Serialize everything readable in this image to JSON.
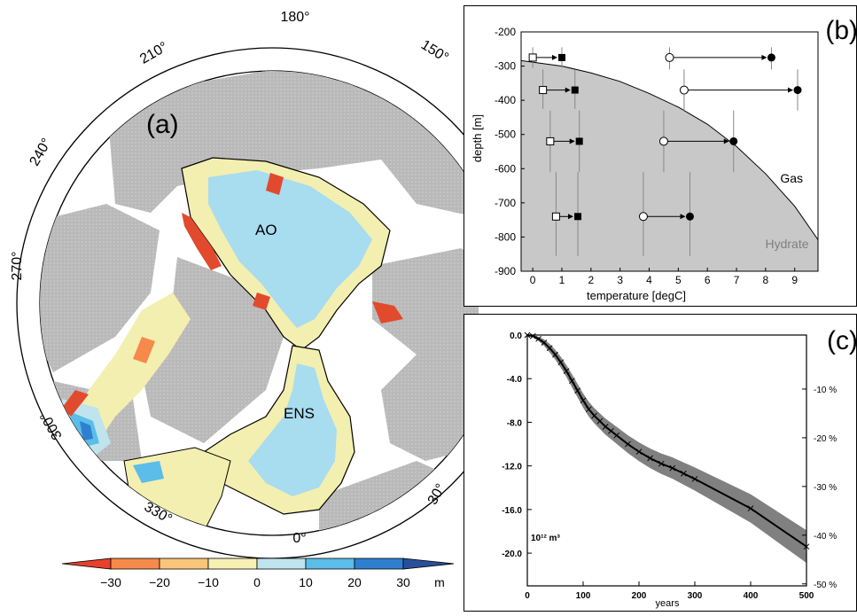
{
  "panel_a": {
    "label": "(a)",
    "longitudes": [
      "180°",
      "150°",
      "210°",
      "240°",
      "270°",
      "300°",
      "330°",
      "0°",
      "30°"
    ],
    "regions": [
      "AO",
      "ENS"
    ],
    "colorbar": {
      "ticks": [
        "−30",
        "−20",
        "−10",
        "0",
        "10",
        "20",
        "30"
      ],
      "unit": "m",
      "colors": [
        "#e8402c",
        "#f58a4a",
        "#f9c57a",
        "#f7f0b4",
        "#bfe4ee",
        "#5bbde8",
        "#2f7fd0",
        "#2a4f9a"
      ]
    },
    "colors": {
      "land": "#b7b7b7",
      "shelf_yellow": "#f3efb0",
      "deep_blue": "#a8dcef",
      "loss_red": "#e24a2e"
    }
  },
  "chart_data": [
    {
      "type": "scatter",
      "label": "(b)",
      "xlabel": "temperature [degC]",
      "ylabel": "depth [m]",
      "xlim": [
        -0.4,
        9.8
      ],
      "ylim": [
        -900,
        -200
      ],
      "xticks": [
        "0",
        "1",
        "2",
        "3",
        "4",
        "5",
        "6",
        "7",
        "8",
        "9"
      ],
      "yticks": [
        "-200",
        "-300",
        "-400",
        "-500",
        "-600",
        "-700",
        "-800",
        "-900"
      ],
      "regions": {
        "gas": "Gas",
        "hydrate": "Hydrate"
      },
      "stability_curve": {
        "x": [
          -0.4,
          1,
          2,
          3,
          4,
          5,
          6,
          7,
          8,
          9,
          9.8
        ],
        "y": [
          -284,
          -300,
          -320,
          -345,
          -380,
          -420,
          -470,
          -535,
          -615,
          -710,
          -808
        ]
      },
      "arrows_squares": [
        {
          "depth": -275,
          "from": 0,
          "to": 1.0,
          "err_to": [
            -245,
            -305
          ]
        },
        {
          "depth": -370,
          "from": 0.35,
          "to": 1.45,
          "err_to": [
            -310,
            -425
          ]
        },
        {
          "depth": -520,
          "from": 0.6,
          "to": 1.6,
          "err_to": [
            -430,
            -610
          ]
        },
        {
          "depth": -740,
          "from": 0.8,
          "to": 1.55,
          "err_to": [
            -610,
            -855
          ]
        }
      ],
      "arrows_circles": [
        {
          "depth": -275,
          "from": 4.7,
          "to": 8.2,
          "err_to": [
            -245,
            -310
          ]
        },
        {
          "depth": -370,
          "from": 5.2,
          "to": 9.1,
          "err_to": [
            -310,
            -430
          ]
        },
        {
          "depth": -520,
          "from": 4.5,
          "to": 6.9,
          "err_to": [
            -430,
            -610
          ]
        },
        {
          "depth": -740,
          "from": 3.8,
          "to": 5.4,
          "err_to": [
            -610,
            -855
          ]
        }
      ]
    },
    {
      "type": "line",
      "label": "(c)",
      "xlabel": "years",
      "xlim": [
        0,
        500
      ],
      "ylim": [
        -23,
        0
      ],
      "unit_label": "10¹² m³",
      "xticks": [
        "0",
        "100",
        "200",
        "300",
        "400",
        "500"
      ],
      "yticks": [
        "0.0",
        "-4.0",
        "-8.0",
        "-12.0",
        "-16.0",
        "-20.0"
      ],
      "yticks_right": [
        "-10 %",
        "-20 %",
        "-30 %",
        "-40 %",
        "-50 %"
      ],
      "x": [
        0,
        10,
        20,
        30,
        40,
        50,
        60,
        70,
        80,
        90,
        100,
        110,
        120,
        130,
        140,
        150,
        160,
        180,
        200,
        220,
        240,
        260,
        280,
        300,
        400,
        500
      ],
      "y": [
        0,
        -0.1,
        -0.35,
        -0.7,
        -1.2,
        -1.8,
        -2.5,
        -3.3,
        -4.2,
        -5.1,
        -6.0,
        -6.8,
        -7.4,
        -7.9,
        -8.4,
        -8.8,
        -9.2,
        -10.0,
        -10.7,
        -11.3,
        -11.8,
        -12.2,
        -12.7,
        -13.2,
        -15.9,
        -19.4
      ],
      "band_width": [
        0,
        0.1,
        0.2,
        0.3,
        0.4,
        0.45,
        0.5,
        0.55,
        0.6,
        0.62,
        0.65,
        0.68,
        0.7,
        0.72,
        0.74,
        0.76,
        0.78,
        0.82,
        0.86,
        0.9,
        0.94,
        0.98,
        1.02,
        1.06,
        1.3,
        1.5
      ],
      "colors": {
        "line": "#000000",
        "band": "#808080"
      }
    }
  ]
}
